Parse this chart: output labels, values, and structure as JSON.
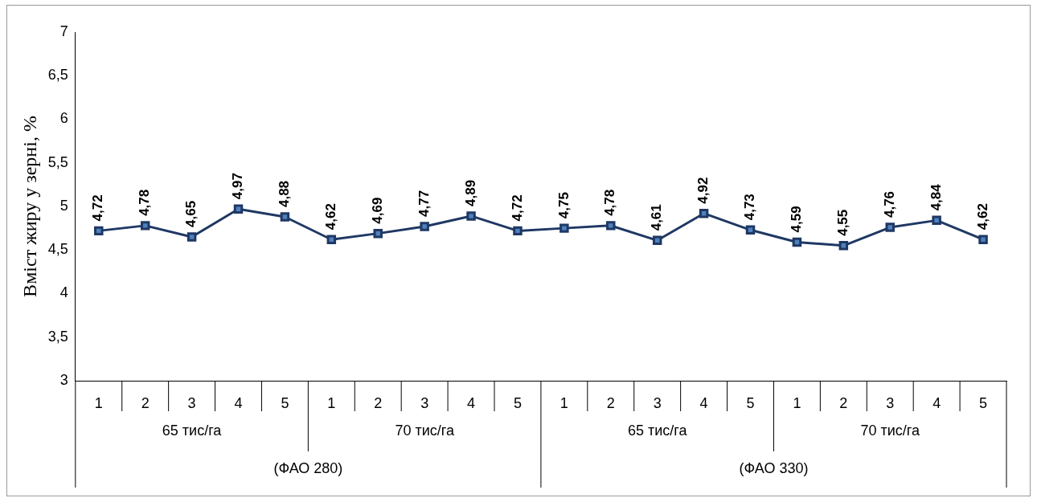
{
  "chart_data": {
    "type": "line",
    "ylabel": "Вміст жиру у зерні, %",
    "categories": [
      "1",
      "2",
      "3",
      "4",
      "5",
      "1",
      "2",
      "3",
      "4",
      "5",
      "1",
      "2",
      "3",
      "4",
      "5",
      "1",
      "2",
      "3",
      "4",
      "5"
    ],
    "series": [
      {
        "color": "#4f81bd",
        "values": [
          4.72,
          4.78,
          4.65,
          4.97,
          4.88,
          4.62,
          4.69,
          4.77,
          4.89,
          4.72,
          4.75,
          4.78,
          4.61,
          4.92,
          4.73,
          4.59,
          4.55,
          4.76,
          4.84,
          4.62
        ],
        "value_labels": [
          "4,72",
          "4,78",
          "4,65",
          "4,97",
          "4,88",
          "4,62",
          "4,69",
          "4,77",
          "4,89",
          "4,72",
          "4,75",
          "4,78",
          "4,61",
          "4,92",
          "4,73",
          "4,59",
          "4,55",
          "4,76",
          "4,84",
          "4,62"
        ]
      }
    ],
    "ylim": [
      3,
      7
    ],
    "yticks": [
      3,
      {
        "value": 3.5,
        "label": "3,5"
      },
      4,
      {
        "value": 4.5,
        "label": "4,5"
      },
      5,
      {
        "value": 5.5,
        "label": "5,5"
      },
      6,
      {
        "value": 6.5,
        "label": "6,5"
      },
      7
    ],
    "annotations": [
      "65 тис/га",
      "70 тис/га",
      "65 тис/га",
      "70 тис/га",
      "(ФАО 280)",
      "(ФАО 330)"
    ],
    "grid": false,
    "legend": false,
    "marker": "square",
    "line_style": "solid"
  }
}
